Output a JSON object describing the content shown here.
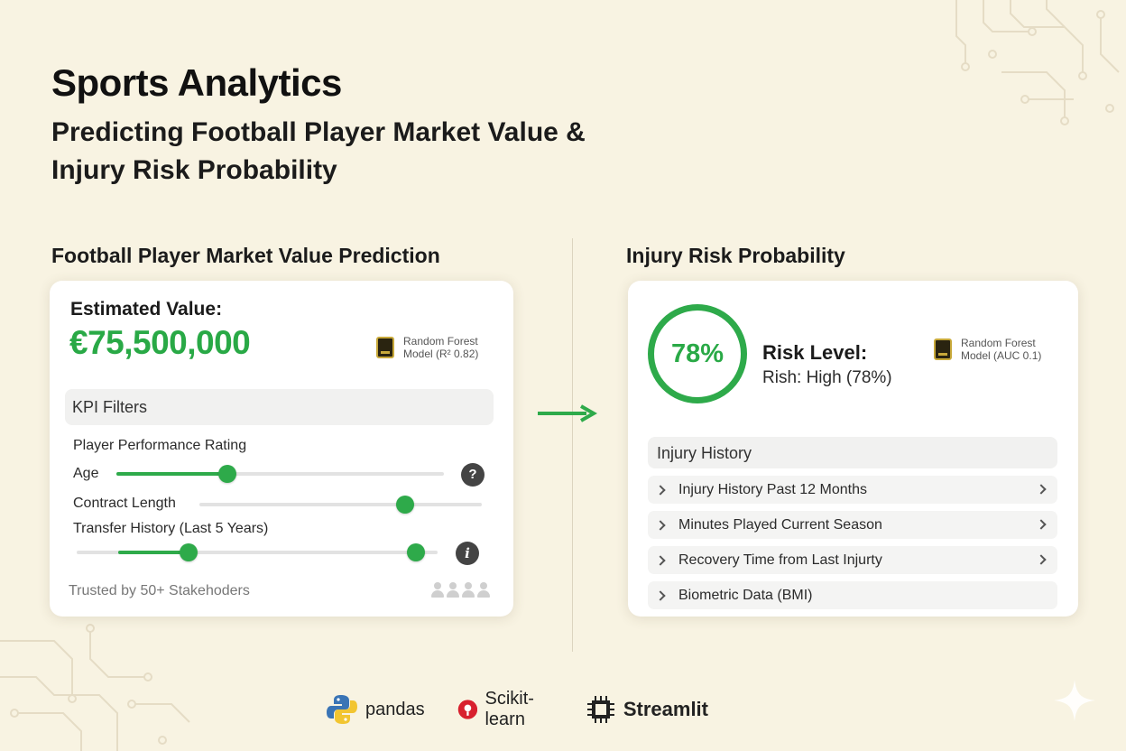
{
  "header": {
    "title": "Sports Analytics",
    "subtitle": "Predicting Football Player Market Value & Injury Risk Probability"
  },
  "market_value": {
    "section_title": "Football Player Market Value Prediction",
    "estimated_label": "Estimated Value:",
    "estimated_value": "€75,500,000",
    "model_line1": "Random Forest",
    "model_line2": "Model (R² 0.82)",
    "kpi_title": "KPI Filters",
    "filters": {
      "performance_label": "Player Performance Rating",
      "age_label": "Age",
      "age_level": 0.34,
      "contract_label": "Contract Length",
      "contract_level": 0.73,
      "transfer_label": "Transfer History (Last 5 Years)",
      "transfer_level_low": 0.31,
      "transfer_level_high": 0.94
    },
    "help_icon_1": "?",
    "help_icon_2": "i",
    "trusted_text": "Trusted by 50+ Stakehoders"
  },
  "injury_risk": {
    "section_title": "Injury Risk Probability",
    "gauge_value": "78%",
    "risk_label": "Risk Level:",
    "risk_value": "Rish: High (78%)",
    "model_line1": "Random Forest",
    "model_line2": "Model (AUC 0.1)",
    "history_title": "Injury History",
    "history_items": [
      "Injury History Past 12 Months",
      "Minutes Played Current Season",
      "Recovery Time from Last Injurty",
      "Biometric Data (BMI)"
    ]
  },
  "tech_stack": {
    "pandas": "pandas",
    "sklearn": "Scikit-learn",
    "streamlit": "Streamlit"
  },
  "colors": {
    "accent_green": "#2eaa4a",
    "background": "#f8f3e2",
    "card": "#ffffff"
  },
  "icons": [
    "chip-icon",
    "help-icon",
    "info-icon",
    "avatar-icon",
    "arrow-right-icon",
    "chevron-right-icon",
    "python-logo-icon",
    "scikit-learn-logo-icon",
    "streamlit-chip-icon",
    "sparkle-icon"
  ]
}
